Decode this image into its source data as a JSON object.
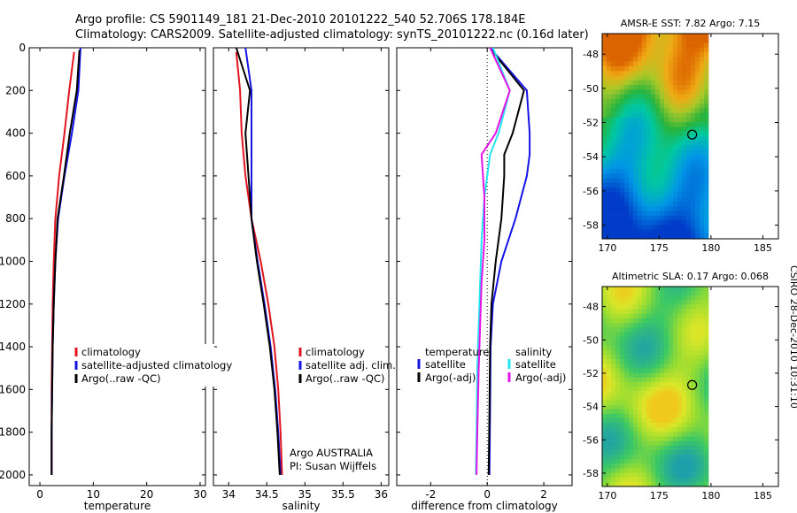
{
  "header": {
    "line1": "Argo profile: CS 5901149_181 21-Dec-2010 20101222_540 52.706S 178.184E",
    "line2": "Climatology: CARS2009. Satellite-adjusted climatology: synTS_20101222.nc (0.16d later)"
  },
  "colors": {
    "climatology": "#e0141e",
    "satellite": "#1414e6",
    "argo": "#000000",
    "satellite_salinity": "#22e6f0",
    "argo_salinity_adj": "#e614e6"
  },
  "chart_data": [
    {
      "type": "line",
      "xlabel": "temperature",
      "ylabel": "",
      "xlim": [
        -2,
        31
      ],
      "ylim": [
        2050,
        0
      ],
      "xticks": [
        0,
        10,
        20,
        30
      ],
      "yticks": [
        0,
        200,
        400,
        600,
        800,
        1000,
        1200,
        1400,
        1600,
        1800,
        2000
      ],
      "legend_position": "lower-right",
      "series": [
        {
          "name": "climatology",
          "color": "#e0141e",
          "x": [
            6.4,
            5.5,
            4.6,
            3.6,
            2.9,
            2.6,
            2.4,
            2.3,
            2.2,
            2.2,
            2.2
          ],
          "y": [
            20,
            200,
            400,
            600,
            800,
            1000,
            1200,
            1400,
            1600,
            1800,
            2000
          ]
        },
        {
          "name": "satellite-adjusted climatology",
          "color": "#1414e6",
          "x": [
            7.6,
            7.2,
            6.0,
            4.6,
            3.4,
            2.9,
            2.6,
            2.4,
            2.3,
            2.2,
            2.2
          ],
          "y": [
            0,
            200,
            400,
            600,
            800,
            1000,
            1200,
            1400,
            1600,
            1800,
            2000
          ]
        },
        {
          "name": "Argo(..raw -QC)",
          "color": "#000000",
          "x": [
            7.4,
            6.9,
            5.6,
            4.5,
            3.3,
            2.9,
            2.6,
            2.4,
            2.3,
            2.2,
            2.2
          ],
          "y": [
            10,
            200,
            400,
            600,
            800,
            1000,
            1200,
            1400,
            1600,
            1800,
            2000
          ]
        }
      ]
    },
    {
      "type": "line",
      "xlabel": "salinity",
      "ylabel": "",
      "xlim": [
        33.8,
        36.1
      ],
      "ylim": [
        2050,
        0
      ],
      "xticks": [
        34,
        34.5,
        35,
        35.5,
        36
      ],
      "legend_position": "lower-right",
      "annotations": [
        "Argo AUSTRALIA",
        "PI: Susan Wijffels"
      ],
      "series": [
        {
          "name": "climatology",
          "color": "#e0141e",
          "x": [
            34.1,
            34.15,
            34.17,
            34.22,
            34.3,
            34.42,
            34.52,
            34.6,
            34.65,
            34.68,
            34.7
          ],
          "y": [
            20,
            200,
            400,
            600,
            800,
            1000,
            1200,
            1400,
            1600,
            1800,
            2000
          ]
        },
        {
          "name": "satellite adj. clim.",
          "color": "#1414e6",
          "x": [
            34.22,
            34.3,
            34.3,
            34.3,
            34.3,
            34.38,
            34.47,
            34.55,
            34.61,
            34.65,
            34.68
          ],
          "y": [
            0,
            200,
            400,
            600,
            800,
            1000,
            1200,
            1400,
            1600,
            1800,
            2000
          ]
        },
        {
          "name": "Argo(..raw -QC)",
          "color": "#000000",
          "x": [
            34.1,
            34.28,
            34.22,
            34.26,
            34.3,
            34.37,
            34.46,
            34.54,
            34.6,
            34.64,
            34.67
          ],
          "y": [
            0,
            200,
            400,
            600,
            800,
            1000,
            1200,
            1400,
            1600,
            1800,
            2000
          ]
        }
      ]
    },
    {
      "type": "line",
      "xlabel": "difference from climatology",
      "ylabel": "",
      "xlim": [
        -3.2,
        3.0
      ],
      "ylim": [
        2050,
        0
      ],
      "xticks": [
        -2,
        0,
        2
      ],
      "legend_position": "lower-right",
      "legend_headers": [
        "temperature",
        "salinity"
      ],
      "series": [
        {
          "name": "satellite",
          "group": "temperature",
          "color": "#1414e6",
          "x": [
            0.1,
            1.4,
            1.5,
            1.5,
            1.4,
            1.0,
            0.5,
            0.2,
            0.12,
            0.1,
            0.08
          ],
          "y": [
            0,
            200,
            400,
            500,
            600,
            800,
            1000,
            1200,
            1400,
            1700,
            2000
          ]
        },
        {
          "name": "Argo(-adj)",
          "group": "temperature",
          "color": "#000000",
          "x": [
            0.2,
            1.3,
            0.9,
            0.6,
            0.6,
            0.5,
            0.3,
            0.15,
            0.1,
            0.08,
            0.05
          ],
          "y": [
            20,
            200,
            400,
            500,
            600,
            800,
            1000,
            1200,
            1400,
            1700,
            2000
          ]
        },
        {
          "name": "satellite",
          "group": "salinity",
          "color": "#22e6f0",
          "x": [
            0.2,
            0.8,
            0.4,
            0.1,
            -0.1,
            -0.2,
            -0.25,
            -0.3,
            -0.35,
            -0.38,
            -0.4
          ],
          "y": [
            0,
            200,
            400,
            500,
            700,
            900,
            1100,
            1300,
            1500,
            1800,
            2000
          ]
        },
        {
          "name": "Argo(-adj)",
          "group": "salinity",
          "color": "#e614e6",
          "x": [
            0.1,
            0.8,
            0.3,
            -0.2,
            -0.1,
            -0.1,
            -0.2,
            -0.25,
            -0.3,
            -0.35,
            -0.38
          ],
          "y": [
            0,
            200,
            400,
            500,
            700,
            900,
            1100,
            1300,
            1500,
            1800,
            2000
          ]
        }
      ]
    },
    {
      "type": "heatmap",
      "title": "AMSR-E SST: 7.82  Argo: 7.15",
      "xticks": [
        170,
        175,
        180,
        185
      ],
      "yticks": [
        -48,
        -50,
        -52,
        -54,
        -56,
        -58
      ],
      "xlim": [
        169.5,
        186.5
      ],
      "ylim": [
        -58.8,
        -46.8
      ],
      "marker": {
        "lon": 178.184,
        "lat": -52.706
      }
    },
    {
      "type": "heatmap",
      "title": "Altimetric SLA: 0.17  Argo: 0.068",
      "xticks": [
        170,
        175,
        180,
        185
      ],
      "yticks": [
        -48,
        -50,
        -52,
        -54,
        -56,
        -58
      ],
      "xlim": [
        169.5,
        186.5
      ],
      "ylim": [
        -58.8,
        -46.8
      ],
      "marker": {
        "lon": 178.184,
        "lat": -52.706
      }
    }
  ],
  "footer": {
    "credit": "CSIRO 28-Dec-2010 10:31:10"
  }
}
